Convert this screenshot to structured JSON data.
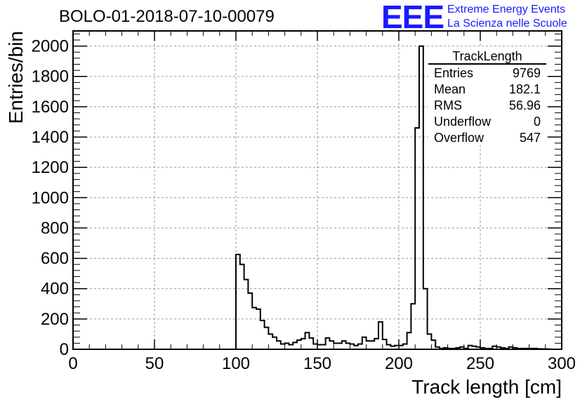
{
  "title": "BOLO-01-2018-07-10-00079",
  "logo": {
    "mark": "EEE",
    "line1": "Extreme Energy Events",
    "line2": "La Scienza nelle Scuole"
  },
  "stats": {
    "name": "TrackLength",
    "rows": [
      {
        "label": "Entries",
        "value": "9769"
      },
      {
        "label": "Mean",
        "value": "182.1"
      },
      {
        "label": "RMS",
        "value": "56.96"
      },
      {
        "label": "Underflow",
        "value": "0"
      },
      {
        "label": "Overflow",
        "value": "547"
      }
    ]
  },
  "colors": {
    "line": "#000000",
    "grid": "#9a9a9a",
    "logo": "#1a1aff"
  },
  "chart_data": {
    "type": "histogram",
    "xlabel": "Track length [cm]",
    "ylabel": "Entries/bin",
    "xlim": [
      0,
      300
    ],
    "ylim": [
      0,
      2100
    ],
    "xticks": [
      0,
      50,
      100,
      150,
      200,
      250,
      300
    ],
    "yticks": [
      0,
      200,
      400,
      600,
      800,
      1000,
      1200,
      1400,
      1600,
      1800,
      2000
    ],
    "grid": true,
    "bin_width": 2.5,
    "bins_start": 100,
    "values": [
      625,
      560,
      460,
      370,
      275,
      265,
      190,
      145,
      100,
      80,
      55,
      35,
      40,
      30,
      45,
      60,
      70,
      110,
      75,
      35,
      30,
      30,
      75,
      55,
      40,
      40,
      55,
      40,
      35,
      25,
      35,
      80,
      55,
      55,
      70,
      180,
      65,
      30,
      20,
      25,
      25,
      35,
      110,
      300,
      1460,
      2000,
      400,
      100,
      60,
      15,
      5,
      10,
      5,
      5,
      10,
      15,
      5,
      25,
      20,
      15,
      10,
      5,
      5,
      20,
      15,
      10,
      5,
      15,
      10,
      5,
      5,
      5,
      5,
      5,
      3,
      2,
      2,
      0,
      0,
      0
    ]
  }
}
